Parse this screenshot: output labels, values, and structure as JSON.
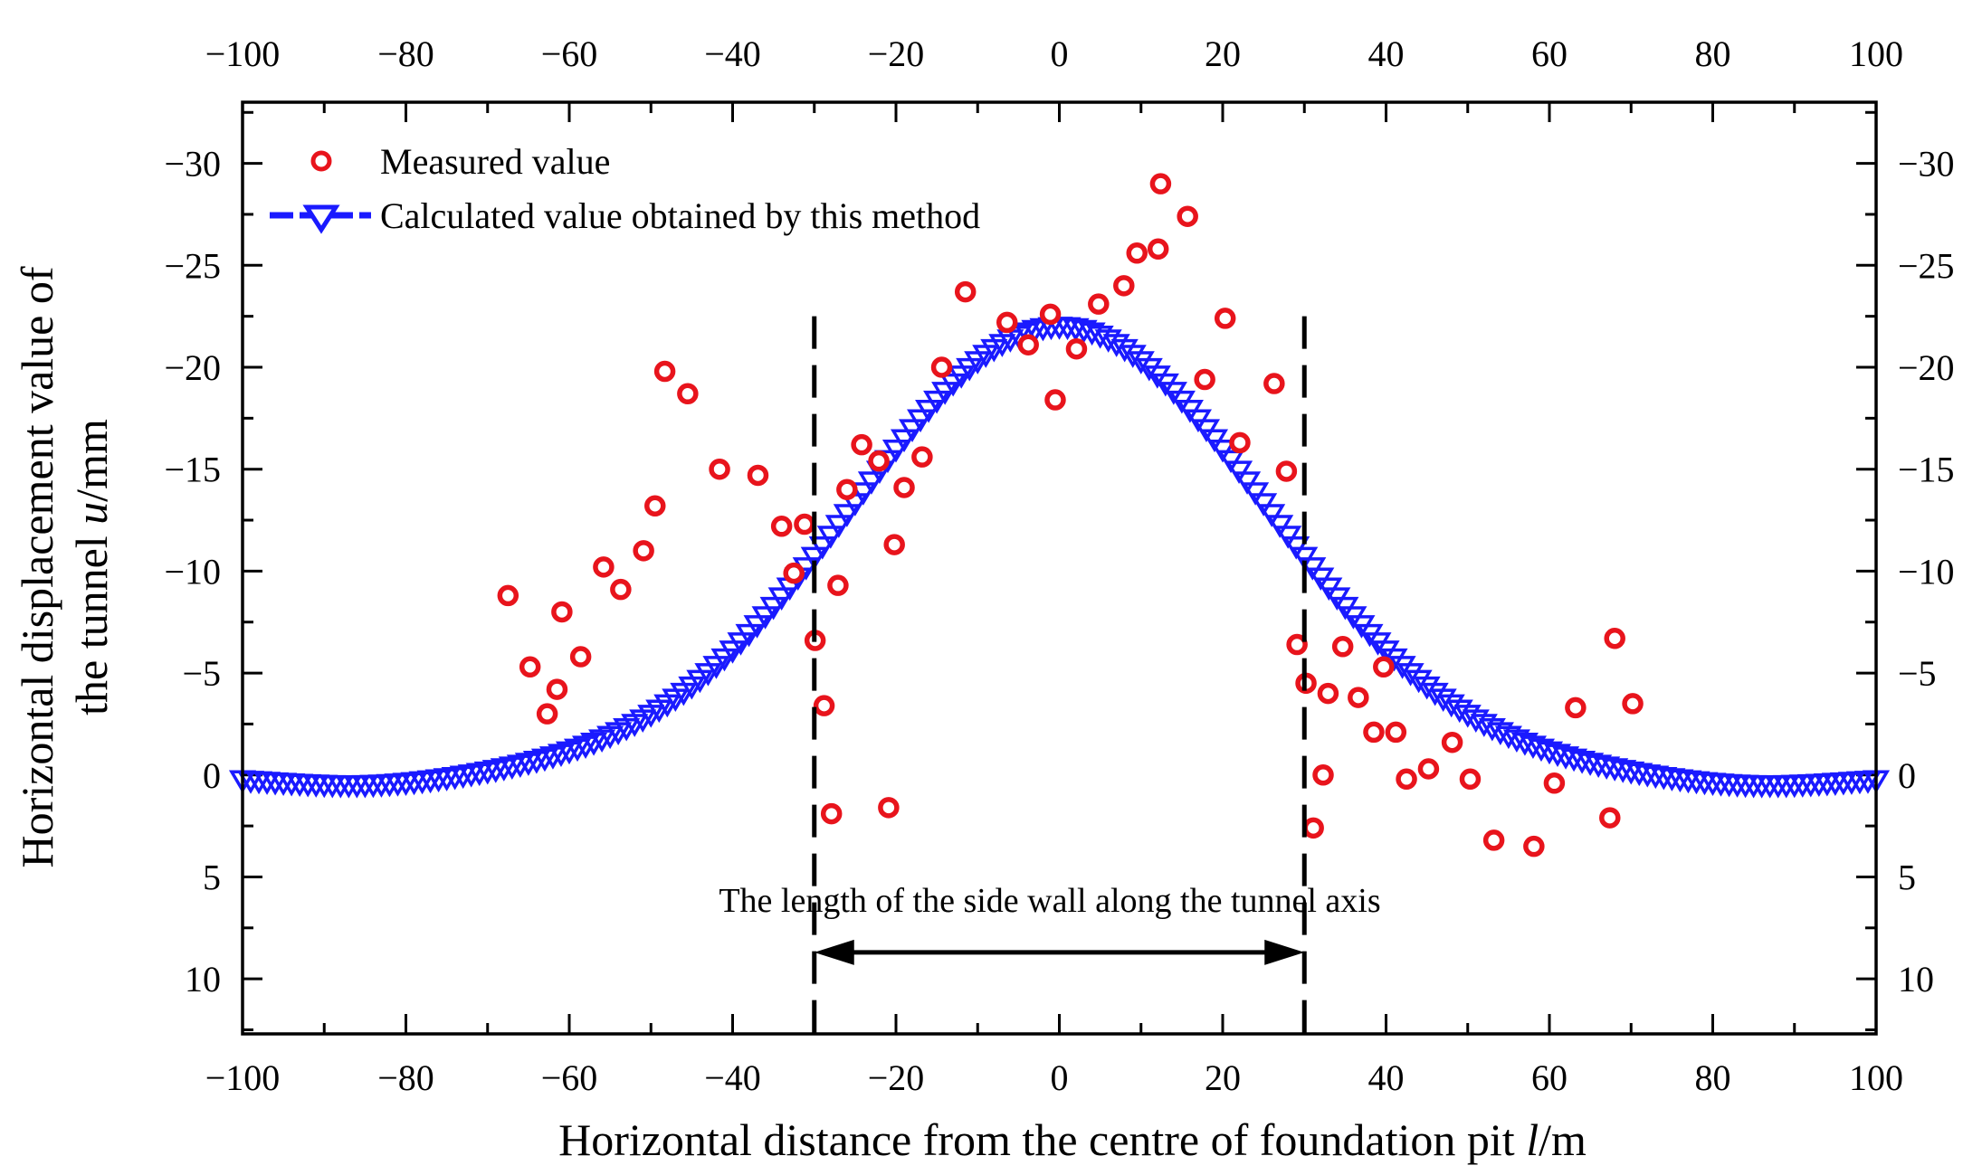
{
  "chart_data": {
    "type": "scatter",
    "xlabel_main": "Horizontal distance from the centre of foundation pit ",
    "xlabel_var": "l",
    "xlabel_unit": "/m",
    "ylabel_line1": "Horizontal displacement value of",
    "ylabel_line2_main": "the tunnel ",
    "ylabel_line2_var": "u",
    "ylabel_line2_unit": "/mm",
    "xlim": [
      -100,
      100
    ],
    "ylim": [
      -33,
      12.7
    ],
    "y_inverted": true,
    "x_ticks": [
      -100,
      -80,
      -60,
      -40,
      -20,
      0,
      20,
      40,
      60,
      80,
      100
    ],
    "x_tick_labels": [
      "−100",
      "−80",
      "−60",
      "−40",
      "−20",
      "0",
      "20",
      "40",
      "60",
      "80",
      "100"
    ],
    "y_ticks": [
      -30,
      -25,
      -20,
      -15,
      -10,
      -5,
      0,
      5,
      10
    ],
    "y_tick_labels": [
      "−30",
      "−25",
      "−20",
      "−15",
      "−10",
      "−5",
      "0",
      "5",
      "10"
    ],
    "legend": {
      "position": "top-left",
      "measured": "Measured value",
      "calculated": "Calculated value obtained by this method"
    },
    "annotation": {
      "text": "The length of the side wall along the tunnel axis",
      "x_start": -30,
      "x_end": 30,
      "arrow_y": 8.7
    },
    "colors": {
      "measured": "#e8141c",
      "calculated": "#1a1aff",
      "axis": "#000000"
    },
    "series": [
      {
        "name": "Measured value",
        "marker": "circle",
        "x": [
          -67.5,
          -64.8,
          -62.7,
          -61.5,
          -60.9,
          -58.6,
          -55.8,
          -53.7,
          -50.9,
          -49.5,
          -48.3,
          -45.5,
          -41.6,
          -36.9,
          -34,
          -32.5,
          -31.2,
          -29.9,
          -28.8,
          -27.9,
          -27.1,
          -26,
          -24.2,
          -22.1,
          -20.9,
          -20.2,
          -19,
          -16.8,
          -14.4,
          -11.5,
          -6.4,
          -3.8,
          -1.1,
          -0.5,
          2.1,
          4.8,
          7.9,
          9.5,
          12.1,
          12.4,
          15.7,
          17.8,
          20.3,
          22.1,
          26.3,
          27.8,
          29.1,
          30.2,
          31.1,
          32.3,
          32.9,
          34.7,
          36.6,
          38.5,
          39.7,
          41.2,
          42.5,
          45.2,
          48.1,
          50.3,
          53.2,
          58.1,
          60.6,
          63.2,
          67.4,
          68,
          70.2
        ],
        "y": [
          -8.8,
          -5.3,
          -3,
          -4.2,
          -8,
          -5.8,
          -10.2,
          -9.1,
          -11,
          -13.2,
          -19.8,
          -18.7,
          -15,
          -14.7,
          -12.2,
          -9.9,
          -12.3,
          -6.6,
          -3.4,
          1.9,
          -9.3,
          -14,
          -16.2,
          -15.4,
          1.6,
          -11.3,
          -14.1,
          -15.6,
          -20,
          -23.7,
          -22.2,
          -21.1,
          -22.6,
          -18.4,
          -20.9,
          -23.1,
          -24,
          -25.6,
          -25.8,
          -29,
          -27.4,
          -19.4,
          -22.4,
          -16.3,
          -19.2,
          -14.9,
          -6.4,
          -4.5,
          2.6,
          0,
          -4,
          -6.3,
          -3.8,
          -2.1,
          -5.3,
          -2.1,
          0.2,
          -0.3,
          -1.6,
          0.2,
          3.2,
          3.5,
          0.4,
          -3.3,
          2.1,
          -6.7,
          -3.5
        ]
      },
      {
        "name": "Calculated value obtained by this method",
        "marker": "triangle-down",
        "formula": "u = -22 * exp(-l^2 / (2*25^2)) + 0.55 * exp(-(|l|-85)^2 / (2*12^2))",
        "x_range": [
          -100,
          100
        ],
        "x_step": 1
      }
    ]
  }
}
